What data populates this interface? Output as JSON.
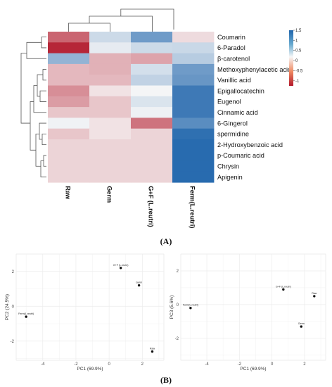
{
  "panels": {
    "a": "(A)",
    "b": "(B)"
  },
  "chart_data": [
    {
      "type": "heatmap",
      "title": "",
      "rows": [
        "Coumarin",
        "6-Paradol",
        "β-carotenol",
        "Methoxyphenylacetic acid",
        "Vanillic acid",
        "Epigallocatechin",
        "Eugenol",
        "Cinnamic acid",
        "6-Gingerol",
        "spermidine",
        "2-Hydroxybenzoic acid",
        "p-Coumaric acid",
        "Chrysin",
        "Apigenin"
      ],
      "columns": [
        "Raw",
        "Germ",
        "G+F (L.reutri)",
        "Ferm(L.reutri)"
      ],
      "values": [
        [
          -1.05,
          0.3,
          0.95,
          -0.2
        ],
        [
          -1.5,
          0.12,
          0.3,
          0.32
        ],
        [
          0.7,
          -0.5,
          -0.6,
          0.45
        ],
        [
          -0.45,
          -0.5,
          0.25,
          0.95
        ],
        [
          -0.45,
          -0.45,
          0.38,
          1.0
        ],
        [
          -0.75,
          -0.15,
          0.02,
          1.3
        ],
        [
          -0.65,
          -0.35,
          0.2,
          1.3
        ],
        [
          -0.35,
          -0.35,
          0.06,
          1.3
        ],
        [
          0.05,
          -0.15,
          -0.95,
          1.1
        ],
        [
          -0.35,
          -0.15,
          -0.25,
          1.4
        ],
        [
          -0.25,
          -0.25,
          -0.25,
          1.45
        ],
        [
          -0.25,
          -0.25,
          -0.25,
          1.45
        ],
        [
          -0.25,
          -0.25,
          -0.25,
          1.45
        ],
        [
          -0.25,
          -0.25,
          -0.25,
          1.45
        ]
      ],
      "color_scale": {
        "ticks": [
          "1.5",
          "1",
          "0.5",
          "0",
          "-0.5",
          "-1"
        ],
        "range": [
          -1.6,
          1.5
        ],
        "low": "#b2182b",
        "mid": "#f7f7f7",
        "high": "#2166ac"
      },
      "dendrograms": {
        "row": true,
        "column": true
      }
    },
    {
      "type": "scatter",
      "title": "",
      "xlabel": "PC1 (69.9%)",
      "ylabel": "PC2 (24.5%)",
      "xlim": [
        -5.6,
        3.3
      ],
      "ylim": [
        -3.1,
        3.0
      ],
      "xticks": [
        "-4",
        "-2",
        "0",
        "2"
      ],
      "yticks": [
        "2",
        "0",
        "-2"
      ],
      "grid": true,
      "points": [
        {
          "label": "G+F (L.reutri)",
          "x": 0.7,
          "y": 2.2
        },
        {
          "label": "Germ",
          "x": 1.8,
          "y": 1.2
        },
        {
          "label": "Ferm(L.reutri)",
          "x": -5.0,
          "y": -0.6
        },
        {
          "label": "Raw",
          "x": 2.6,
          "y": -2.6
        }
      ]
    },
    {
      "type": "scatter",
      "title": "",
      "xlabel": "PC1 (69.9%)",
      "ylabel": "PC3 (5.6%)",
      "xlim": [
        -5.6,
        3.3
      ],
      "ylim": [
        -3.3,
        3.0
      ],
      "xticks": [
        "-4",
        "-2",
        "0",
        "2"
      ],
      "yticks": [
        "2",
        "0",
        "-2"
      ],
      "grid": true,
      "points": [
        {
          "label": "G+F (L.reutri)",
          "x": 0.7,
          "y": 0.9
        },
        {
          "label": "Raw",
          "x": 2.6,
          "y": 0.5
        },
        {
          "label": "Ferm(L.reutri)",
          "x": -5.0,
          "y": -0.2
        },
        {
          "label": "Germ",
          "x": 1.8,
          "y": -1.3
        }
      ]
    }
  ]
}
